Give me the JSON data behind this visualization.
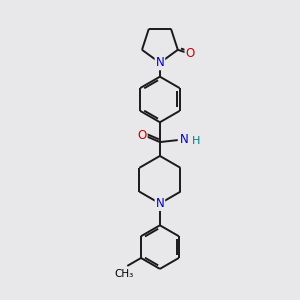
{
  "bg_color": "#e8e8eb",
  "atom_colors": {
    "N": "#0000cc",
    "O": "#cc0000",
    "H": "#008080",
    "C": "#000000"
  },
  "bond_color": "#1a1a1a",
  "line_width": 1.4,
  "figsize": [
    3.0,
    3.0
  ],
  "dpi": 100
}
